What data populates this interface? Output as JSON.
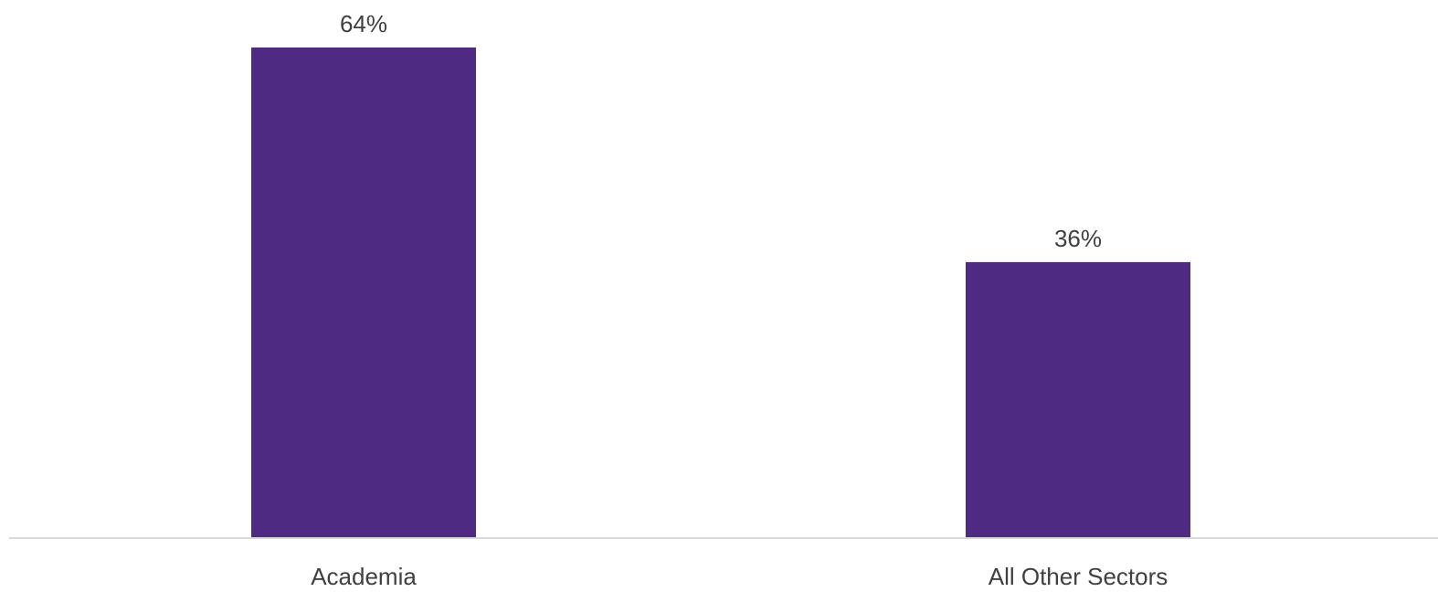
{
  "chart_data": {
    "type": "bar",
    "categories": [
      "Academia",
      "All Other Sectors"
    ],
    "values": [
      64,
      36
    ],
    "value_labels": [
      "64%",
      "36%"
    ],
    "ylim": [
      0,
      68
    ],
    "grid": false,
    "legend": "none",
    "title": "",
    "xlabel": "",
    "ylabel": ""
  },
  "colors": {
    "bar": "#4e2a82",
    "axis": "#d9d9d9",
    "text": "#404040"
  }
}
